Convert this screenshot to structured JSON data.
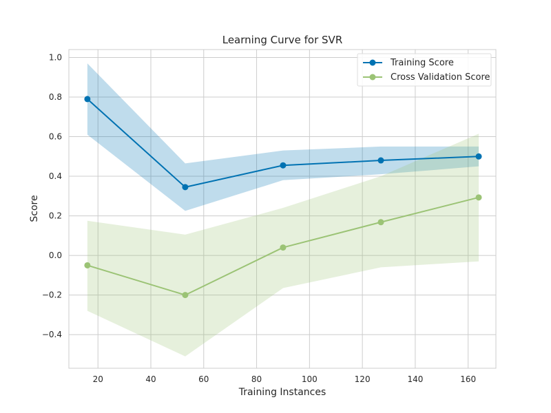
{
  "chart_data": {
    "type": "line",
    "title": "Learning Curve for SVR",
    "xlabel": "Training Instances",
    "ylabel": "Score",
    "xlim": [
      9,
      170.5
    ],
    "ylim": [
      -0.57,
      1.04
    ],
    "xticks": [
      20,
      40,
      60,
      80,
      100,
      120,
      140,
      160
    ],
    "xtick_labels": [
      "20",
      "40",
      "60",
      "80",
      "100",
      "120",
      "140",
      "160"
    ],
    "yticks": [
      -0.4,
      -0.2,
      0.0,
      0.2,
      0.4,
      0.6,
      0.8,
      1.0
    ],
    "ytick_labels": [
      "−0.4",
      "−0.2",
      "0.0",
      "0.2",
      "0.4",
      "0.6",
      "0.8",
      "1.0"
    ],
    "grid": true,
    "legend_position": "top-right",
    "x": [
      16,
      53,
      90,
      127,
      164
    ],
    "series": [
      {
        "name": "Training Score",
        "color": "#0072B2",
        "values": [
          0.79,
          0.345,
          0.455,
          0.48,
          0.5
        ],
        "band_upper": [
          0.97,
          0.465,
          0.53,
          0.55,
          0.55
        ],
        "band_lower": [
          0.61,
          0.225,
          0.38,
          0.41,
          0.45
        ]
      },
      {
        "name": "Cross Validation Score",
        "color": "#9BC375",
        "values": [
          -0.05,
          -0.2,
          0.04,
          0.168,
          0.293
        ],
        "band_upper": [
          0.175,
          0.105,
          0.24,
          0.4,
          0.615
        ],
        "band_lower": [
          -0.28,
          -0.51,
          -0.165,
          -0.06,
          -0.03
        ]
      }
    ]
  }
}
